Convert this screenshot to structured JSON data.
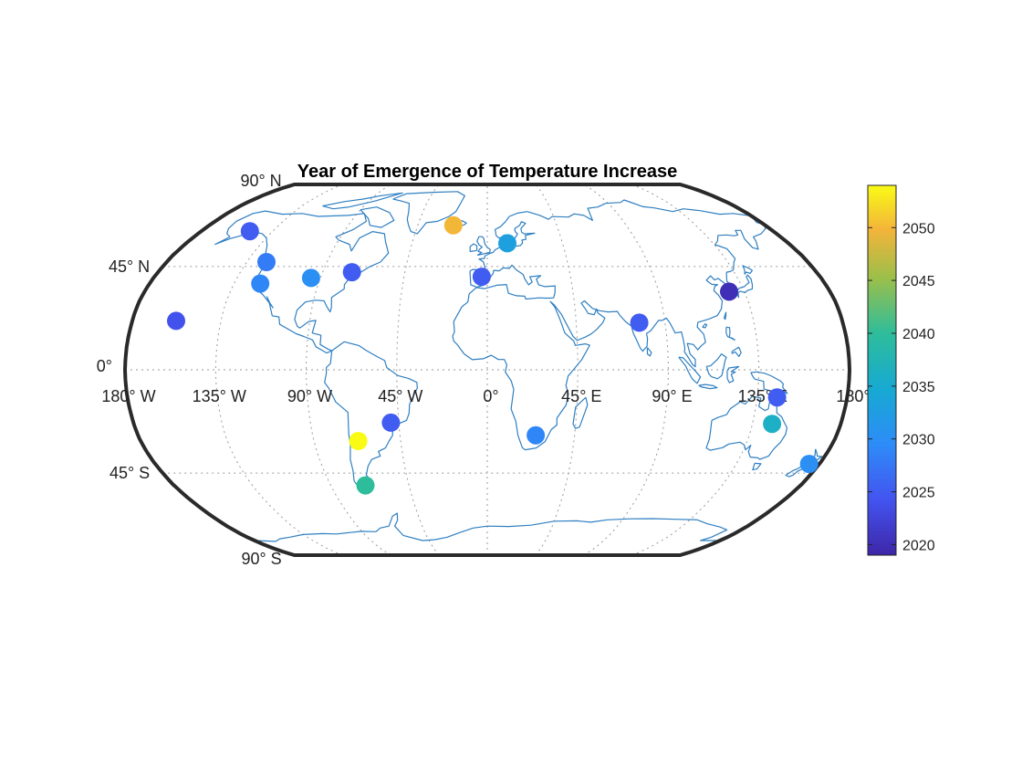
{
  "chart_data": {
    "type": "scatter",
    "title": "Year of Emergence of Temperature Increase",
    "projection": "Robinson",
    "grid": true,
    "meridian_labels": [
      "180° W",
      "135° W",
      "90° W",
      "45° W",
      "0°",
      "45° E",
      "90° E",
      "135° E",
      "180°"
    ],
    "parallel_labels": [
      "90° N",
      "45° N",
      "0°",
      "45° S",
      "90° S"
    ],
    "colorbar": {
      "colormap": "parula",
      "range": [
        2019,
        2054
      ],
      "ticks": [
        2020,
        2025,
        2030,
        2035,
        2040,
        2045,
        2050
      ],
      "tick_labels": [
        "2020",
        "2025",
        "2030",
        "2035",
        "2040",
        "2045",
        "2050"
      ]
    },
    "points": [
      {
        "lon": -149.5,
        "lat": 61.2,
        "year": 2025
      },
      {
        "lon": -124.0,
        "lat": 47.0,
        "year": 2028
      },
      {
        "lon": -121.0,
        "lat": 37.5,
        "year": 2029
      },
      {
        "lon": -157.8,
        "lat": 21.3,
        "year": 2024
      },
      {
        "lon": -95.0,
        "lat": 40.0,
        "year": 2030
      },
      {
        "lon": -74.0,
        "lat": 42.5,
        "year": 2025
      },
      {
        "lon": -22.0,
        "lat": 64.0,
        "year": 2050
      },
      {
        "lon": 12.0,
        "lat": 55.5,
        "year": 2033
      },
      {
        "lon": -3.0,
        "lat": 40.5,
        "year": 2025
      },
      {
        "lon": 77.0,
        "lat": 20.5,
        "year": 2025
      },
      {
        "lon": 127.0,
        "lat": 34.0,
        "year": 2020
      },
      {
        "lon": 145.0,
        "lat": -12.0,
        "year": 2025
      },
      {
        "lon": 145.0,
        "lat": -23.5,
        "year": 2036
      },
      {
        "lon": 174.5,
        "lat": -41.0,
        "year": 2030
      },
      {
        "lon": 25.0,
        "lat": -28.5,
        "year": 2029
      },
      {
        "lon": -49.0,
        "lat": -23.0,
        "year": 2025
      },
      {
        "lon": -67.0,
        "lat": -31.0,
        "year": 2054
      },
      {
        "lon": -70.0,
        "lat": -50.5,
        "year": 2040
      }
    ]
  }
}
